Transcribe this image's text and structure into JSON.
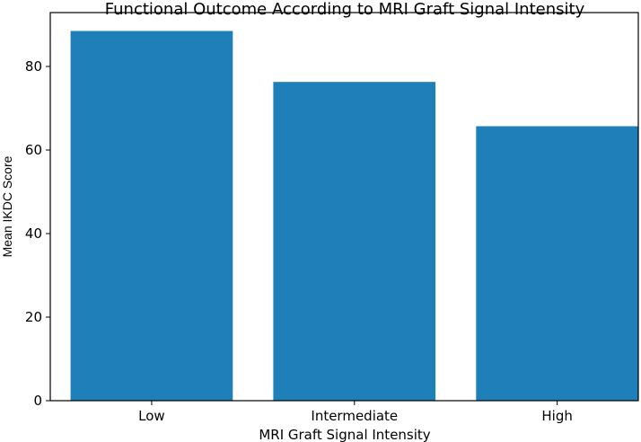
{
  "chart_data": {
    "type": "bar",
    "title": "Functional Outcome According to MRI Graft Signal Intensity",
    "xlabel": "MRI Graft Signal Intensity",
    "ylabel": "Mean IKDC Score",
    "categories": [
      "Low",
      "Intermediate",
      "High"
    ],
    "values": [
      88.5,
      76.3,
      65.7
    ],
    "ylim": [
      0,
      92.9
    ],
    "yticks": [
      0,
      20,
      40,
      60,
      80
    ],
    "bar_color": "#1f7fb8",
    "grid": false,
    "legend": "none"
  }
}
